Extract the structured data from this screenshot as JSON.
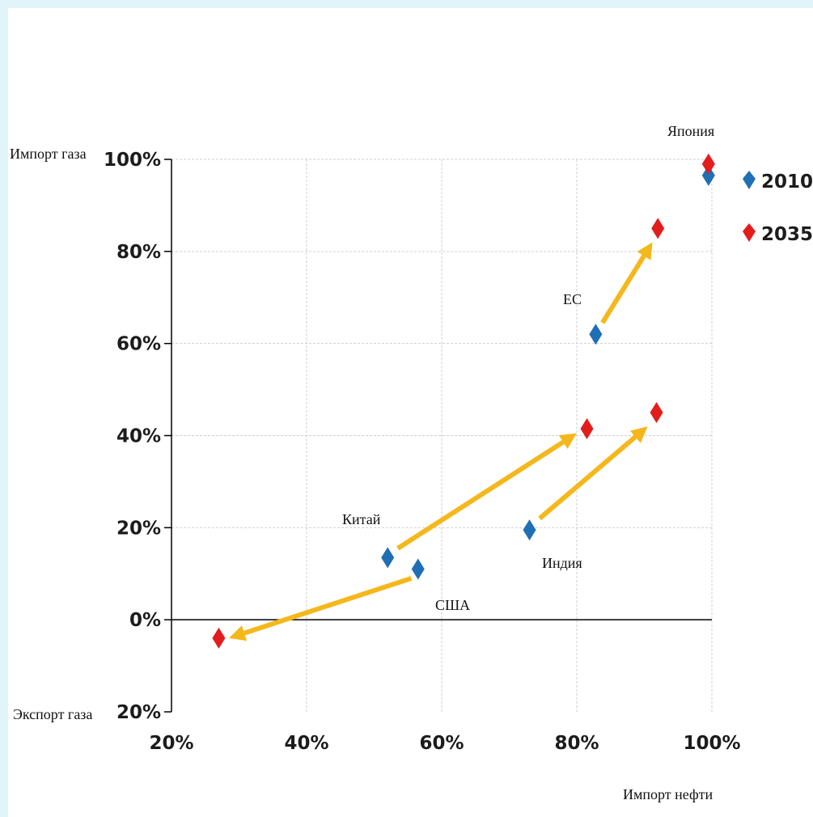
{
  "chart_data": {
    "type": "scatter",
    "xlabel": "Импорт нефти",
    "ylabel_top": "Импорт газа",
    "ylabel_bottom": "Экспорт газа",
    "xlim": [
      0.2,
      1.0
    ],
    "ylim": [
      -0.2,
      1.0
    ],
    "x_ticks": [
      {
        "v": 0.2,
        "label": "20%"
      },
      {
        "v": 0.4,
        "label": "40%"
      },
      {
        "v": 0.6,
        "label": "60%"
      },
      {
        "v": 0.8,
        "label": "80%"
      },
      {
        "v": 1.0,
        "label": "100%"
      }
    ],
    "y_ticks": [
      {
        "v": 1.0,
        "label": "100%"
      },
      {
        "v": 0.8,
        "label": "80%"
      },
      {
        "v": 0.6,
        "label": "60%"
      },
      {
        "v": 0.4,
        "label": "40%"
      },
      {
        "v": 0.2,
        "label": "20%"
      },
      {
        "v": 0.0,
        "label": "0%"
      },
      {
        "v": -0.2,
        "label": "20%"
      }
    ],
    "grid": true,
    "series": [
      {
        "name": "2010",
        "color": "#1f6fb5",
        "points": [
          {
            "label": "Япония",
            "x": 0.995,
            "y": 0.965
          },
          {
            "label": "ЕС",
            "x": 0.828,
            "y": 0.62
          },
          {
            "label": "Индия",
            "x": 0.73,
            "y": 0.195
          },
          {
            "label": "Китай",
            "x": 0.52,
            "y": 0.135
          },
          {
            "label": "США",
            "x": 0.565,
            "y": 0.11
          }
        ]
      },
      {
        "name": "2035",
        "color": "#e31c1c",
        "points": [
          {
            "label": "Япония",
            "x": 0.995,
            "y": 0.99
          },
          {
            "label": "ЕС",
            "x": 0.92,
            "y": 0.85
          },
          {
            "label": "Индия",
            "x": 0.918,
            "y": 0.45
          },
          {
            "label": "Китай",
            "x": 0.815,
            "y": 0.415
          },
          {
            "label": "США",
            "x": 0.27,
            "y": -0.04
          }
        ]
      }
    ],
    "arrows": [
      {
        "country": "ЕС",
        "from": [
          0.838,
          0.645
        ],
        "to": [
          0.912,
          0.82
        ]
      },
      {
        "country": "Индия",
        "from": [
          0.745,
          0.22
        ],
        "to": [
          0.905,
          0.42
        ]
      },
      {
        "country": "Китай",
        "from": [
          0.535,
          0.155
        ],
        "to": [
          0.8,
          0.405
        ]
      },
      {
        "country": "США",
        "from": [
          0.555,
          0.09
        ],
        "to": [
          0.285,
          -0.04
        ]
      }
    ],
    "arrow_color": "#f4b81c",
    "point_labels": [
      {
        "text": "Япония",
        "country": "Япония"
      },
      {
        "text": "ЕС",
        "country": "ЕС"
      },
      {
        "text": "Китай",
        "country": "Китай"
      },
      {
        "text": "Индия",
        "country": "Индия"
      },
      {
        "text": "США",
        "country": "США"
      }
    ],
    "legend": {
      "position": "right",
      "items": [
        "2010",
        "2035"
      ]
    }
  }
}
